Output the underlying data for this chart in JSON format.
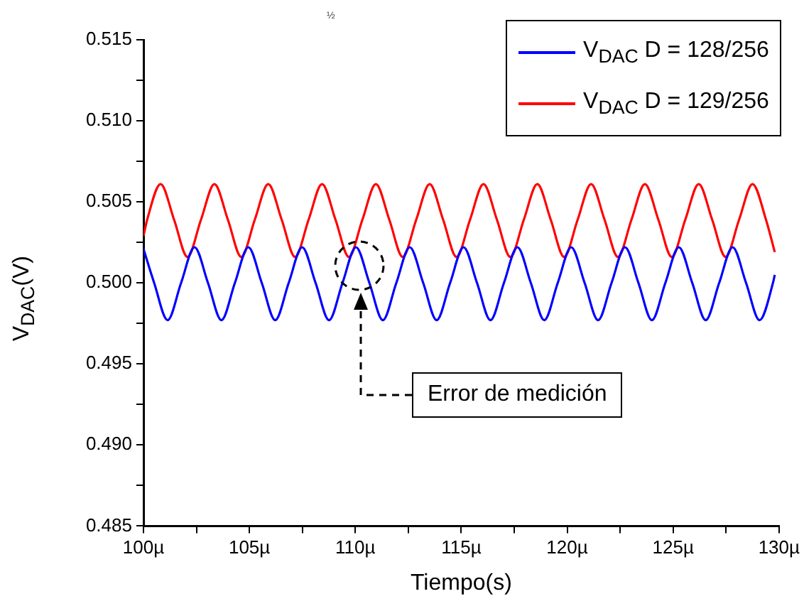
{
  "chart_data": {
    "type": "line",
    "title": "½",
    "xlabel": "Tiempo(s)",
    "ylabel": "V$_{DAC}$(V)",
    "xlim": [
      100,
      130
    ],
    "xticks": [
      {
        "value": 100,
        "label": "100µ"
      },
      {
        "value": 102.5,
        "label": null
      },
      {
        "value": 105,
        "label": "105µ"
      },
      {
        "value": 107.5,
        "label": null
      },
      {
        "value": 110,
        "label": "110µ"
      },
      {
        "value": 112.5,
        "label": null
      },
      {
        "value": 115,
        "label": "115µ"
      },
      {
        "value": 117.5,
        "label": null
      },
      {
        "value": 120,
        "label": "120µ"
      },
      {
        "value": 122.5,
        "label": null
      },
      {
        "value": 125,
        "label": "125µ"
      },
      {
        "value": 127.5,
        "label": null
      },
      {
        "value": 130,
        "label": "130µ"
      }
    ],
    "ylim": [
      0.485,
      0.515
    ],
    "yticks": [
      {
        "value": 0.485,
        "label": "0.485"
      },
      {
        "value": 0.4875,
        "label": null
      },
      {
        "value": 0.49,
        "label": "0.490"
      },
      {
        "value": 0.4925,
        "label": null
      },
      {
        "value": 0.495,
        "label": "0.495"
      },
      {
        "value": 0.4975,
        "label": null
      },
      {
        "value": 0.5,
        "label": "0.500"
      },
      {
        "value": 0.5025,
        "label": null
      },
      {
        "value": 0.505,
        "label": "0.505"
      },
      {
        "value": 0.5075,
        "label": null
      },
      {
        "value": 0.51,
        "label": "0.510"
      },
      {
        "value": 0.5125,
        "label": null
      },
      {
        "value": 0.515,
        "label": "0.515"
      }
    ],
    "grid": false,
    "legend": "top right",
    "marker": "none",
    "line_style": "solid",
    "annotations": [
      "Error de medición"
    ],
    "series": [
      {
        "name": "V$_{DAC}$  D = 128/256",
        "color": "#0000ff",
        "x": [
          100,
          100.505,
          101.14,
          101.775,
          102.41,
          103.045,
          103.68,
          104.315,
          104.95,
          105.585,
          106.22,
          106.855,
          107.49,
          108.125,
          108.76,
          109.395,
          110.03,
          110.665,
          111.3,
          111.935,
          112.57,
          113.205,
          113.84,
          114.475,
          115.11,
          115.745,
          116.38,
          117.015,
          117.65,
          118.285,
          118.92,
          119.555,
          120.19,
          120.825,
          121.46,
          122.095,
          122.73,
          123.365,
          124,
          124.635,
          125.27,
          125.905,
          126.54,
          127.175,
          127.81,
          128.445,
          129.08,
          129.715,
          129.8
        ],
        "values": [
          0.5021,
          0.5,
          0.4977,
          0.5,
          0.5022,
          0.5,
          0.4977,
          0.5,
          0.5022,
          0.5,
          0.4977,
          0.5,
          0.5022,
          0.5,
          0.4977,
          0.5,
          0.5022,
          0.5,
          0.4977,
          0.5,
          0.5022,
          0.5,
          0.4977,
          0.5,
          0.5022,
          0.5,
          0.4977,
          0.5,
          0.5022,
          0.5,
          0.4977,
          0.5,
          0.5022,
          0.5,
          0.4977,
          0.5,
          0.5022,
          0.5,
          0.4977,
          0.5,
          0.5022,
          0.5,
          0.4977,
          0.5,
          0.5022,
          0.5,
          0.4977,
          0.5,
          0.5005
        ]
      },
      {
        "name": "V$_{DAC}$  D = 129/256",
        "color": "#ff0000",
        "x": [
          100,
          100.175,
          100.81,
          101.445,
          102.08,
          102.715,
          103.35,
          103.985,
          104.62,
          105.255,
          105.89,
          106.525,
          107.16,
          107.795,
          108.43,
          109.065,
          109.7,
          110.335,
          110.97,
          111.605,
          112.24,
          112.875,
          113.51,
          114.145,
          114.78,
          115.415,
          116.05,
          116.685,
          117.32,
          117.955,
          118.59,
          119.225,
          119.86,
          120.495,
          121.13,
          121.765,
          122.4,
          123.035,
          123.67,
          124.305,
          124.94,
          125.575,
          126.21,
          126.845,
          127.48,
          128.115,
          128.75,
          129.385,
          129.8
        ],
        "values": [
          0.5029,
          0.5039,
          0.5061,
          0.5039,
          0.5016,
          0.5039,
          0.5061,
          0.5039,
          0.5016,
          0.5039,
          0.5061,
          0.5039,
          0.5016,
          0.5039,
          0.5061,
          0.5039,
          0.5016,
          0.5039,
          0.5061,
          0.5039,
          0.5016,
          0.5039,
          0.5061,
          0.5039,
          0.5016,
          0.5039,
          0.5061,
          0.5039,
          0.5016,
          0.5039,
          0.5061,
          0.5039,
          0.5016,
          0.5039,
          0.5061,
          0.5039,
          0.5016,
          0.5039,
          0.5061,
          0.5039,
          0.5016,
          0.5039,
          0.5061,
          0.5039,
          0.5016,
          0.5039,
          0.5061,
          0.5039,
          0.5019
        ]
      }
    ]
  }
}
